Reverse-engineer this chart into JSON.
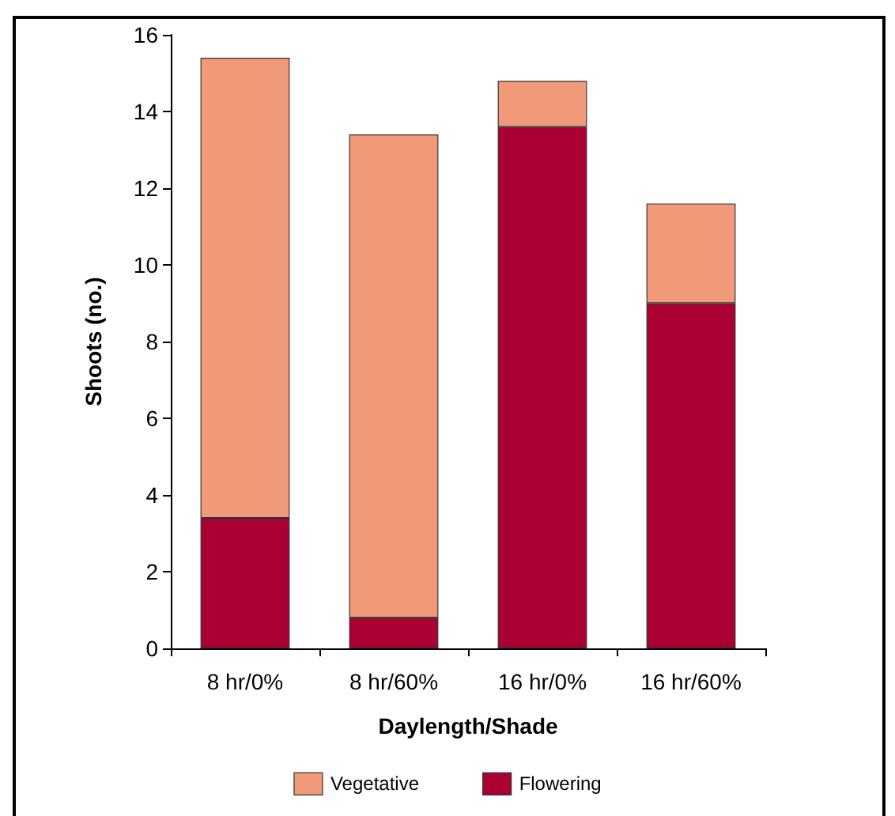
{
  "chart_data": {
    "type": "bar",
    "xlabel": "Daylength/Shade",
    "ylabel": "Shoots (no.)",
    "categories": [
      "8 hr/0%",
      "8 hr/60%",
      "16 hr/0%",
      "16 hr/60%"
    ],
    "stacked": true,
    "series": [
      {
        "name": "Flowering",
        "color": "#ab0034",
        "values": [
          3.4,
          0.8,
          13.6,
          9.0
        ]
      },
      {
        "name": "Vegetative",
        "color": "#f19a7a",
        "values": [
          12.0,
          12.6,
          1.2,
          2.6
        ]
      }
    ],
    "ylim": [
      0,
      16
    ],
    "yticks": [
      0,
      2,
      4,
      6,
      8,
      10,
      12,
      14,
      16
    ],
    "grid": false,
    "legend": "bottom"
  }
}
